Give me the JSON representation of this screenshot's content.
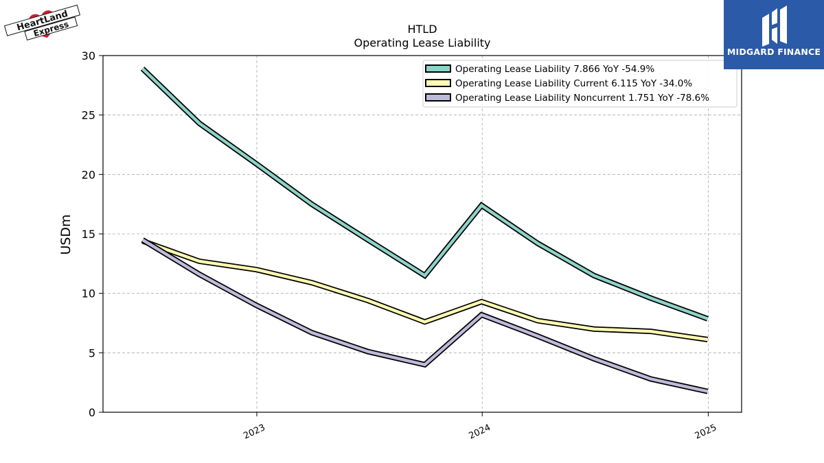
{
  "logos": {
    "left_text_1": "HeartLand",
    "left_text_2": "Express",
    "right_brand": "MIDGARD FINANCE"
  },
  "colors": {
    "series": [
      "#8dd3c7",
      "#ffffb3",
      "#bebada"
    ],
    "outline": "#000000",
    "grid": "#aaaaaa",
    "brand_blue": "#2b5aa8"
  },
  "chart_data": {
    "type": "line",
    "title": "HTLD",
    "subtitle": "Operating Lease Liability",
    "ylabel": "USDm",
    "xlabel": "",
    "ylim": [
      0,
      30
    ],
    "yticks": [
      "0",
      "5",
      "10",
      "15",
      "20",
      "25",
      "30"
    ],
    "xticks": [
      "2023",
      "2024",
      "2025"
    ],
    "grid": true,
    "legend_position": "top-right",
    "x": [
      "2022-06-30",
      "2022-09-30",
      "2022-12-31",
      "2023-03-31",
      "2023-06-30",
      "2023-09-30",
      "2023-12-31",
      "2024-03-31",
      "2024-06-30",
      "2024-09-30",
      "2024-12-31"
    ],
    "series": [
      {
        "name": "Operating Lease Liability",
        "legend": "Operating Lease Liability  7.866 YoY -54.9%",
        "values": [
          28.9,
          24.3,
          20.9,
          17.5,
          14.5,
          11.5,
          17.4,
          14.2,
          11.5,
          9.6,
          7.866
        ]
      },
      {
        "name": "Operating Lease Liability Current",
        "legend": "Operating Lease Liability Current  6.115 YoY -34.0%",
        "values": [
          14.4,
          12.7,
          12.0,
          10.9,
          9.4,
          7.6,
          9.3,
          7.7,
          7.0,
          6.8,
          6.115
        ]
      },
      {
        "name": "Operating Lease Liability Noncurrent",
        "legend": "Operating Lease Liability Noncurrent  1.751 YoY -78.6%",
        "values": [
          14.5,
          11.6,
          9.0,
          6.7,
          5.1,
          4.0,
          8.2,
          6.4,
          4.5,
          2.8,
          1.751
        ]
      }
    ]
  }
}
